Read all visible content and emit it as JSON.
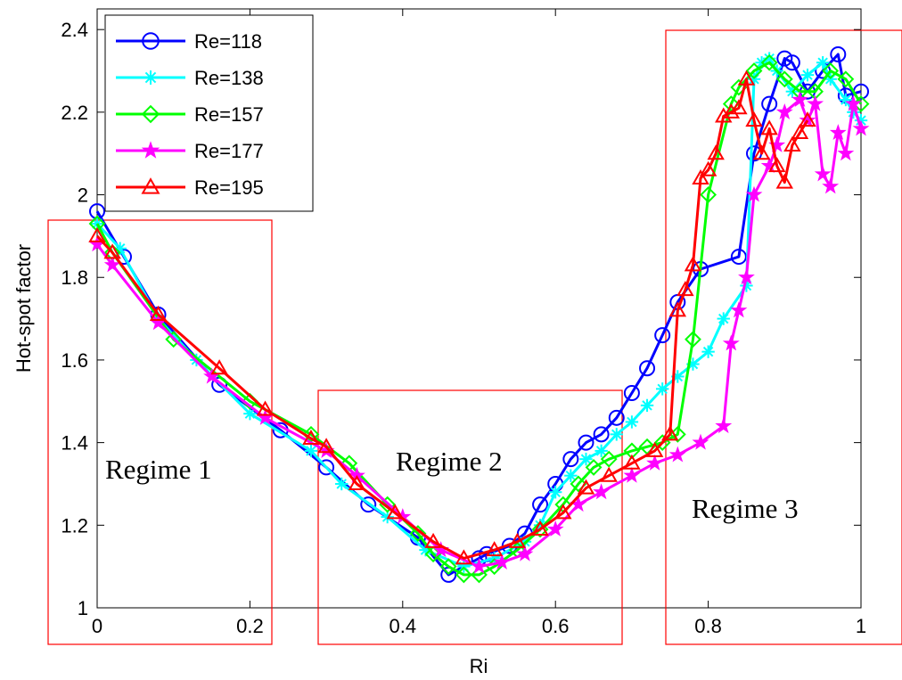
{
  "chart_data": {
    "type": "line",
    "title": "",
    "xlabel": "Ri",
    "ylabel": "Hot-spot factor",
    "xlim": [
      0,
      1
    ],
    "ylim": [
      1,
      2.45
    ],
    "xticks": [
      "0",
      "0.2",
      "0.4",
      "0.6",
      "0.8",
      "1"
    ],
    "yticks": [
      "1",
      "1.2",
      "1.4",
      "1.6",
      "1.8",
      "2",
      "2.2",
      "2.4"
    ],
    "xtick_values": [
      0,
      0.2,
      0.4,
      0.6,
      0.8,
      1.0
    ],
    "ytick_values": [
      1.0,
      1.2,
      1.4,
      1.6,
      1.8,
      2.0,
      2.2,
      2.4
    ],
    "grid": false,
    "legend_position": "top-left",
    "series": [
      {
        "name": "Re=118",
        "color": "#0000ff",
        "marker": "circle",
        "x": [
          0.0,
          0.035,
          0.08,
          0.16,
          0.24,
          0.3,
          0.355,
          0.42,
          0.46,
          0.5,
          0.51,
          0.54,
          0.56,
          0.58,
          0.6,
          0.62,
          0.64,
          0.66,
          0.68,
          0.7,
          0.72,
          0.74,
          0.76,
          0.79,
          0.84,
          0.86,
          0.88,
          0.9,
          0.91,
          0.93,
          0.95,
          0.97,
          0.98,
          1.0
        ],
        "y": [
          1.96,
          1.85,
          1.71,
          1.54,
          1.43,
          1.34,
          1.25,
          1.17,
          1.08,
          1.12,
          1.13,
          1.15,
          1.18,
          1.25,
          1.3,
          1.36,
          1.4,
          1.42,
          1.46,
          1.52,
          1.58,
          1.66,
          1.74,
          1.82,
          1.85,
          2.1,
          2.22,
          2.33,
          2.32,
          2.25,
          2.3,
          2.34,
          2.24,
          2.25
        ]
      },
      {
        "name": "Re=138",
        "color": "#00ffff",
        "marker": "asterisk",
        "x": [
          0.0,
          0.03,
          0.08,
          0.13,
          0.2,
          0.28,
          0.32,
          0.38,
          0.43,
          0.48,
          0.52,
          0.56,
          0.58,
          0.6,
          0.62,
          0.64,
          0.66,
          0.68,
          0.7,
          0.72,
          0.74,
          0.76,
          0.78,
          0.8,
          0.82,
          0.85,
          0.86,
          0.87,
          0.88,
          0.89,
          0.91,
          0.93,
          0.95,
          0.96,
          0.98,
          0.99,
          1.0
        ],
        "y": [
          1.93,
          1.87,
          1.7,
          1.6,
          1.47,
          1.38,
          1.3,
          1.22,
          1.14,
          1.1,
          1.12,
          1.16,
          1.2,
          1.28,
          1.32,
          1.36,
          1.38,
          1.42,
          1.45,
          1.49,
          1.53,
          1.56,
          1.59,
          1.62,
          1.7,
          1.78,
          2.28,
          2.32,
          2.33,
          2.3,
          2.25,
          2.29,
          2.32,
          2.28,
          2.23,
          2.2,
          2.18
        ]
      },
      {
        "name": "Re=157",
        "color": "#00ff00",
        "marker": "diamond",
        "x": [
          0.0,
          0.02,
          0.1,
          0.2,
          0.28,
          0.33,
          0.38,
          0.42,
          0.44,
          0.46,
          0.48,
          0.5,
          0.52,
          0.55,
          0.58,
          0.61,
          0.63,
          0.65,
          0.67,
          0.7,
          0.72,
          0.74,
          0.76,
          0.78,
          0.8,
          0.83,
          0.84,
          0.86,
          0.88,
          0.9,
          0.92,
          0.94,
          0.96,
          0.98,
          1.0
        ],
        "y": [
          1.93,
          1.86,
          1.65,
          1.5,
          1.42,
          1.35,
          1.25,
          1.18,
          1.13,
          1.1,
          1.08,
          1.08,
          1.1,
          1.14,
          1.19,
          1.25,
          1.3,
          1.34,
          1.36,
          1.38,
          1.39,
          1.4,
          1.42,
          1.65,
          2.0,
          2.22,
          2.26,
          2.3,
          2.32,
          2.28,
          2.25,
          2.25,
          2.3,
          2.28,
          2.22
        ]
      },
      {
        "name": "Re=177",
        "color": "#ff00ff",
        "marker": "star",
        "x": [
          0.0,
          0.02,
          0.08,
          0.15,
          0.22,
          0.3,
          0.34,
          0.4,
          0.45,
          0.5,
          0.53,
          0.56,
          0.6,
          0.63,
          0.66,
          0.7,
          0.73,
          0.76,
          0.79,
          0.82,
          0.83,
          0.84,
          0.85,
          0.86,
          0.88,
          0.89,
          0.9,
          0.92,
          0.93,
          0.94,
          0.95,
          0.96,
          0.97,
          0.98,
          0.99,
          1.0
        ],
        "y": [
          1.88,
          1.83,
          1.69,
          1.56,
          1.46,
          1.38,
          1.32,
          1.22,
          1.14,
          1.1,
          1.11,
          1.13,
          1.19,
          1.25,
          1.28,
          1.32,
          1.35,
          1.37,
          1.4,
          1.44,
          1.64,
          1.72,
          1.8,
          2.0,
          2.07,
          2.12,
          2.2,
          2.23,
          2.18,
          2.22,
          2.05,
          2.02,
          2.15,
          2.1,
          2.22,
          2.16
        ]
      },
      {
        "name": "Re=195",
        "color": "#ff0000",
        "marker": "triangle",
        "x": [
          0.0,
          0.02,
          0.08,
          0.16,
          0.22,
          0.28,
          0.3,
          0.34,
          0.39,
          0.44,
          0.48,
          0.52,
          0.55,
          0.58,
          0.61,
          0.64,
          0.67,
          0.7,
          0.73,
          0.75,
          0.76,
          0.77,
          0.78,
          0.79,
          0.8,
          0.81,
          0.82,
          0.83,
          0.84,
          0.85,
          0.86,
          0.87,
          0.88,
          0.89,
          0.9,
          0.91,
          0.92,
          0.93
        ],
        "y": [
          1.9,
          1.86,
          1.71,
          1.58,
          1.48,
          1.41,
          1.39,
          1.3,
          1.23,
          1.16,
          1.12,
          1.14,
          1.16,
          1.19,
          1.23,
          1.29,
          1.32,
          1.35,
          1.38,
          1.42,
          1.72,
          1.77,
          1.83,
          2.04,
          2.06,
          2.1,
          2.19,
          2.2,
          2.21,
          2.28,
          2.18,
          2.1,
          2.16,
          2.07,
          2.03,
          2.12,
          2.15,
          2.18
        ]
      }
    ],
    "annotations": [
      "Regime 1",
      "Regime 2",
      "Regime 3"
    ]
  }
}
